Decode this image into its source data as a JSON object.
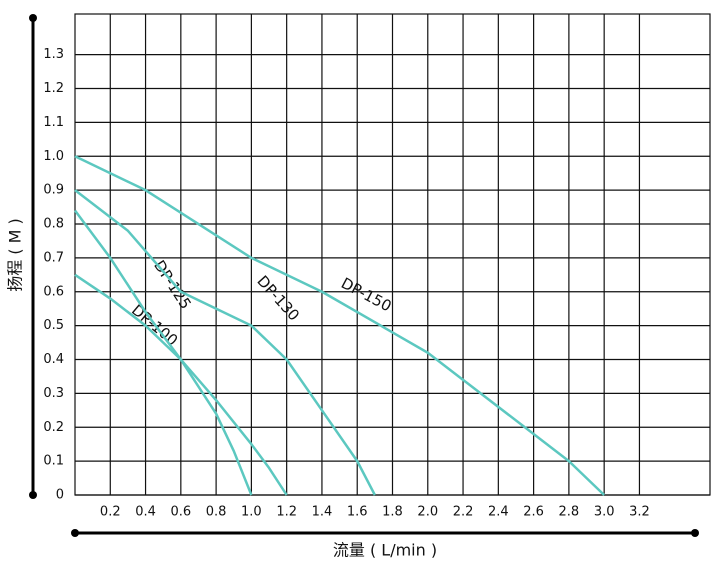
{
  "chart_data": {
    "type": "line",
    "x_label": "流量 ( L/min )",
    "y_label": "扬程 ( M )",
    "xlim": [
      0,
      3.6
    ],
    "ylim": [
      0,
      1.42
    ],
    "xticks": [
      0.2,
      0.4,
      0.6,
      0.8,
      {
        "value": 1,
        "label": "1.0"
      },
      1.2,
      1.4,
      1.6,
      1.8,
      {
        "value": 2,
        "label": "2.0"
      },
      2.2,
      2.4,
      2.6,
      2.8,
      {
        "value": 3,
        "label": "3.0"
      },
      3.2
    ],
    "yticks": [
      0,
      0.1,
      0.2,
      0.3,
      0.4,
      0.5,
      0.6,
      0.7,
      0.8,
      0.9,
      {
        "value": 1,
        "label": "1.0"
      },
      1.1,
      1.2,
      1.3
    ],
    "grid": true,
    "series": [
      {
        "name": "DP-100",
        "color": "#5cc8c0",
        "x": [
          0,
          0.2,
          0.4,
          0.6,
          0.8,
          0.9,
          1.0
        ],
        "values": [
          0.65,
          0.58,
          0.5,
          0.4,
          0.24,
          0.13,
          0
        ]
      },
      {
        "name": "DP-125",
        "color": "#5cc8c0",
        "x": [
          0,
          0.2,
          0.4,
          0.6,
          0.8,
          1.0,
          1.1,
          1.2
        ],
        "values": [
          0.84,
          0.7,
          0.54,
          0.4,
          0.28,
          0.15,
          0.08,
          0
        ]
      },
      {
        "name": "DP-130",
        "color": "#5cc8c0",
        "x": [
          0,
          0.3,
          0.6,
          1.0,
          1.2,
          1.4,
          1.6,
          1.7
        ],
        "values": [
          0.9,
          0.78,
          0.6,
          0.5,
          0.4,
          0.25,
          0.1,
          0
        ]
      },
      {
        "name": "DP-150",
        "color": "#5cc8c0",
        "x": [
          0,
          0.4,
          1.0,
          1.4,
          1.8,
          2.0,
          2.2,
          2.6,
          2.8,
          3.0
        ],
        "values": [
          1.0,
          0.9,
          0.7,
          0.6,
          0.48,
          0.42,
          0.34,
          0.18,
          0.1,
          0
        ]
      }
    ]
  }
}
